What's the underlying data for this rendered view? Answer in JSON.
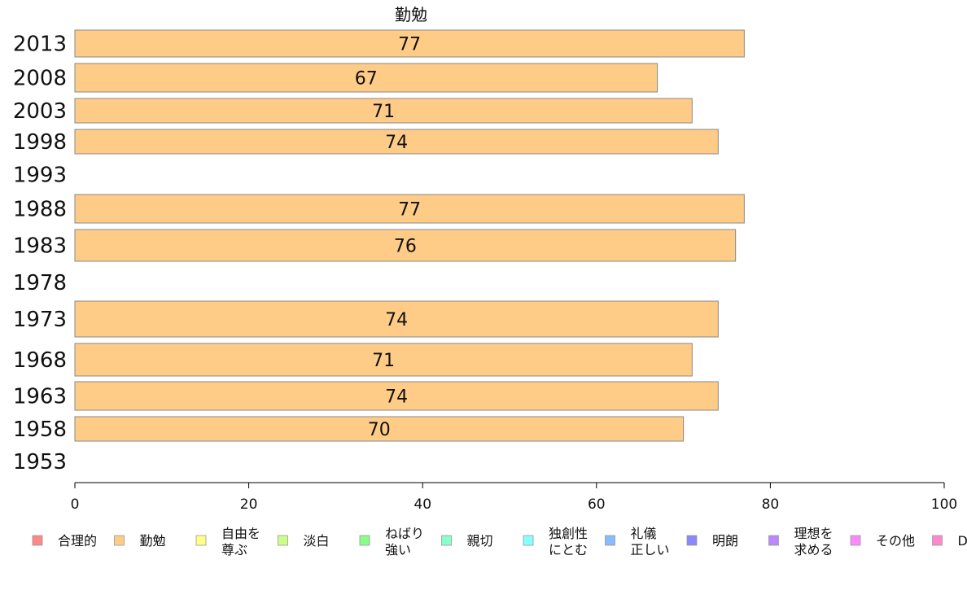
{
  "chart_data": {
    "type": "bar",
    "orientation": "horizontal",
    "title": "勤勉",
    "categories": [
      "2013",
      "2008",
      "2003",
      "1998",
      "1993",
      "1988",
      "1983",
      "1978",
      "1973",
      "1968",
      "1963",
      "1958",
      "1953"
    ],
    "series": [
      {
        "name": "勤勉",
        "color": "#ffcc88",
        "values": [
          77,
          67,
          71,
          74,
          null,
          77,
          76,
          null,
          74,
          71,
          74,
          70,
          null
        ]
      }
    ],
    "xlim": [
      0,
      100
    ],
    "xticks": [
      0,
      20,
      40,
      60,
      80,
      100
    ],
    "grid": false,
    "legend_position": "bottom",
    "legend": [
      {
        "label": "合理的",
        "color": "#ff8888"
      },
      {
        "label": "勤勉",
        "color": "#ffcc88"
      },
      {
        "label": "自由を\n尊ぶ",
        "color": "#ffff88"
      },
      {
        "label": "淡白",
        "color": "#ccff88"
      },
      {
        "label": "ねばり\n強い",
        "color": "#88ff88"
      },
      {
        "label": "親切",
        "color": "#88ffcc"
      },
      {
        "label": "独創性\nにとむ",
        "color": "#88ffff"
      },
      {
        "label": "礼儀\n正しい",
        "color": "#88bbff"
      },
      {
        "label": "明朗",
        "color": "#8888ff"
      },
      {
        "label": "理想を\n求める",
        "color": "#bb88ff"
      },
      {
        "label": "その他",
        "color": "#ff88ff"
      },
      {
        "label": "D",
        "color": "#ff88cc"
      }
    ]
  }
}
